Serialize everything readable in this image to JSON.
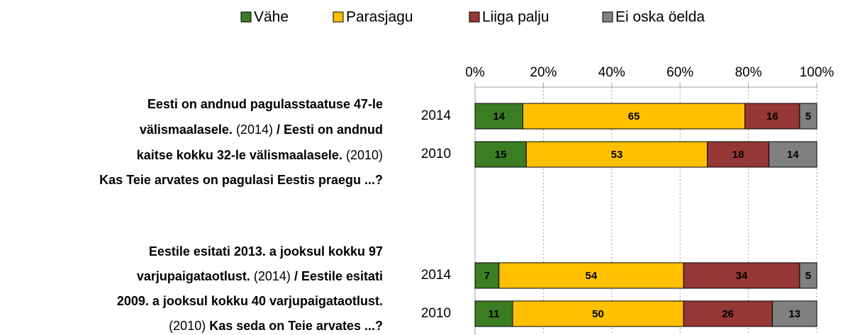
{
  "chart_data": {
    "type": "stacked-barh",
    "categories": [
      "2014",
      "2010",
      "2014",
      "2010"
    ],
    "series": [
      {
        "name": "Vähe",
        "color": "#3b7d23",
        "values": [
          14,
          15,
          7,
          11
        ]
      },
      {
        "name": "Parasjagu",
        "color": "#ffc000",
        "values": [
          65,
          53,
          54,
          50
        ]
      },
      {
        "name": "Liiga palju",
        "color": "#953735",
        "values": [
          16,
          18,
          34,
          26
        ]
      },
      {
        "name": "Ei oska öelda",
        "color": "#808080",
        "values": [
          5,
          14,
          5,
          13
        ]
      }
    ],
    "xlim": [
      0,
      100
    ],
    "xticks": [
      {
        "value": 0,
        "label": "0%"
      },
      {
        "value": 20,
        "label": "20%"
      },
      {
        "value": 40,
        "label": "40%"
      },
      {
        "value": 60,
        "label": "60%"
      },
      {
        "value": 80,
        "label": "80%"
      },
      {
        "value": 100,
        "label": "100%"
      }
    ],
    "grid": true,
    "legend": "top",
    "questions": [
      {
        "lines": [
          [
            {
              "text": "Eesti on andnud pagulasstaatuse 47-le",
              "bold": true
            }
          ],
          [
            {
              "text": "välismaalasele.",
              "bold": true
            },
            {
              "text": " (2014) ",
              "bold": false
            },
            {
              "text": "/ Eesti on andnud",
              "bold": true
            }
          ],
          [
            {
              "text": "kaitse kokku 32-le välismaalasele.",
              "bold": true
            },
            {
              "text": " (2010)",
              "bold": false
            }
          ],
          [
            {
              "text": "Kas Teie arvates on pagulasi Eestis praegu ...?",
              "bold": true
            }
          ]
        ]
      },
      {
        "lines": [
          [
            {
              "text": "Eestile esitati 2013. a jooksul kokku 97",
              "bold": true
            }
          ],
          [
            {
              "text": "varjupaigataotlust.",
              "bold": true
            },
            {
              "text": " (2014) ",
              "bold": false
            },
            {
              "text": "/ Eestile esitati",
              "bold": true
            }
          ],
          [
            {
              "text": "2009. a jooksul kokku 40 varjupaigataotlust.",
              "bold": true
            }
          ],
          [
            {
              "text": "(2010) ",
              "bold": false
            },
            {
              "text": "Kas seda on Teie arvates ...?",
              "bold": true
            }
          ]
        ]
      }
    ]
  }
}
